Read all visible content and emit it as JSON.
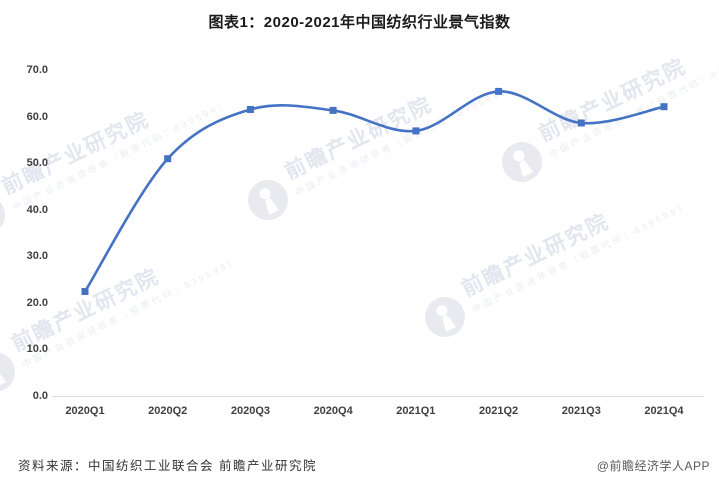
{
  "title": "图表1：2020-2021年中国纺织行业景气指数",
  "chart_data": {
    "type": "line",
    "title": "图表1：2020-2021年中国纺织行业景气指数",
    "categories": [
      "2020Q1",
      "2020Q2",
      "2020Q3",
      "2020Q4",
      "2021Q1",
      "2021Q2",
      "2021Q3",
      "2021Q4"
    ],
    "series": [
      {
        "name": "中国纺织行业景气指数",
        "values": [
          22.4,
          51.0,
          61.6,
          61.4,
          57.0,
          65.5,
          58.7,
          62.2
        ]
      }
    ],
    "xlabel": "",
    "ylabel": "",
    "ylim": [
      0,
      70
    ],
    "yticks": [
      0,
      10,
      20,
      30,
      40,
      50,
      60,
      70
    ],
    "ytick_labels": [
      "0.0",
      "10.0",
      "20.0",
      "30.0",
      "40.0",
      "50.0",
      "60.0",
      "70.0"
    ],
    "grid": false,
    "legend": "none",
    "line_style": "smooth",
    "marker": "square"
  },
  "footer": {
    "source_note": "资料来源：中国纺织工业联合会 前瞻产业研究院",
    "credit": "@前瞻经济学人APP"
  },
  "watermark": {
    "logo_icon": "qianzhan-logo",
    "main_text": "前瞻产业研究院",
    "sub_text": "中国产业咨询领导者（股票代码：839599）"
  },
  "colors": {
    "line": "#4472c4",
    "axis_line": "#d9d9d9",
    "title_text": "#1a1a1a",
    "tick_text": "#404040",
    "source_text": "#333333",
    "credit_text": "#595959",
    "watermark_text": "#e2e6ee",
    "watermark_circle": "#e8eaef"
  }
}
